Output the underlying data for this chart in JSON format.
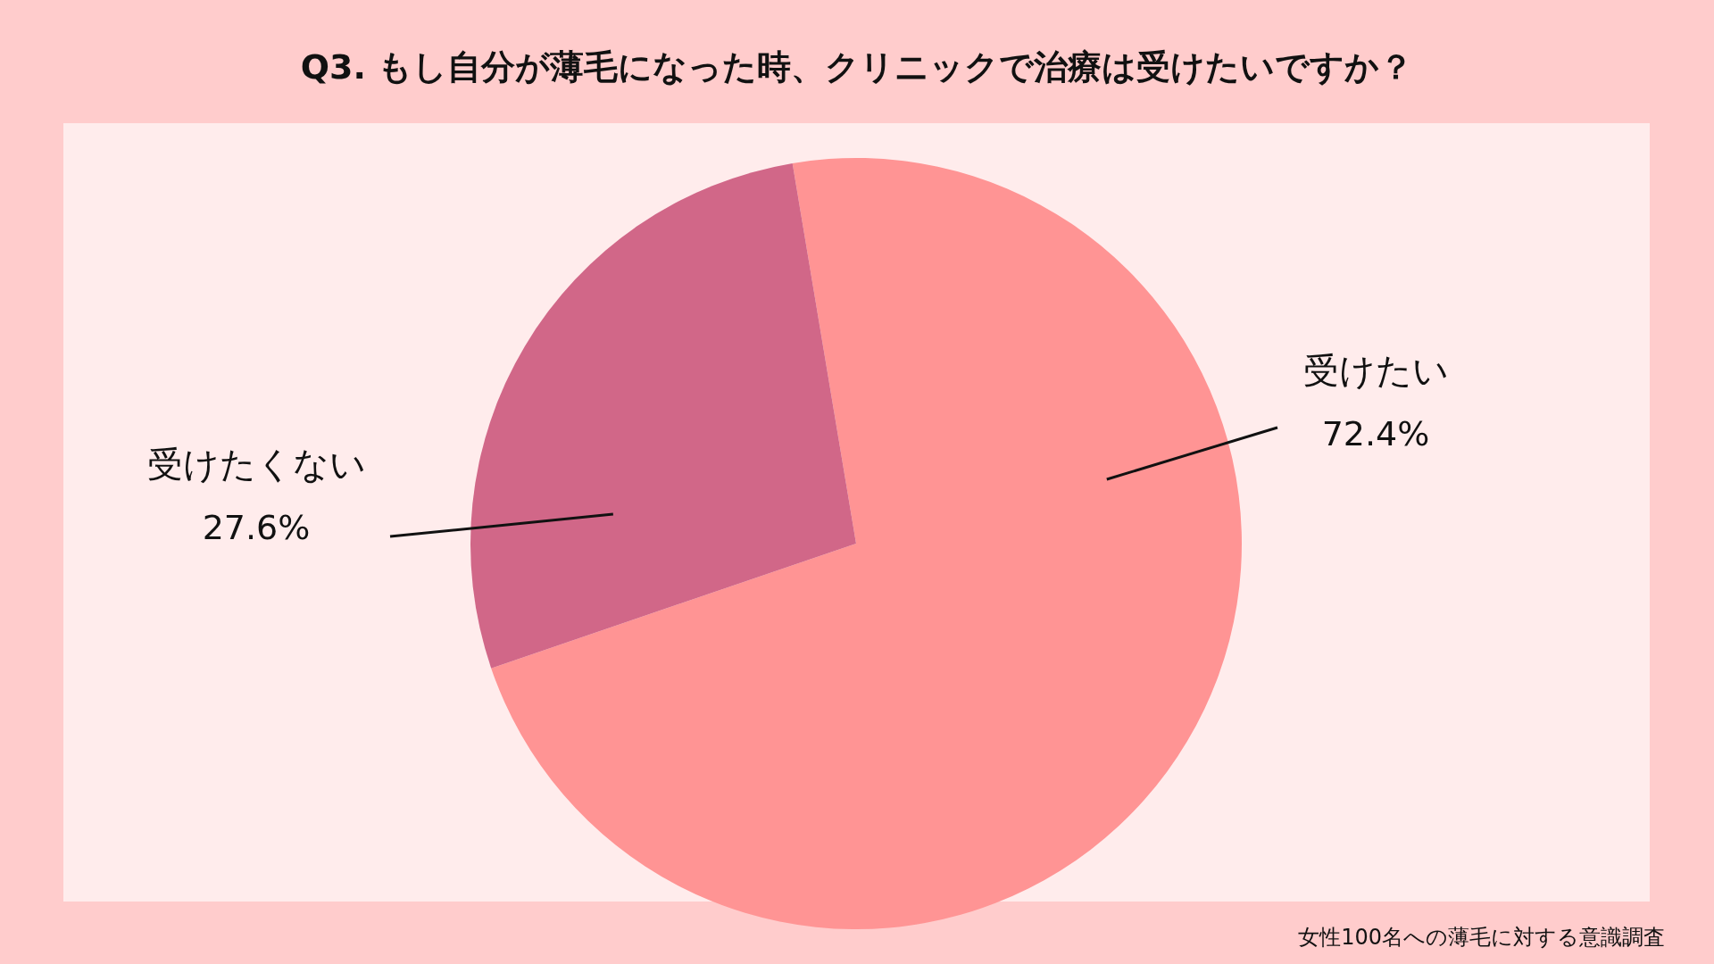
{
  "chart_data": {
    "type": "pie",
    "title": "Q3. もし自分が薄毛になった時、クリニックで治療は受けたいですか？",
    "categories": [
      "受けたい",
      "受けたくない"
    ],
    "values": [
      72.4,
      27.6
    ],
    "colors": [
      "#ff9494",
      "#d16788"
    ],
    "value_labels": [
      "72.4%",
      "27.6%"
    ],
    "annotations": [
      "女性100名への薄毛に対する意識調査"
    ]
  }
}
